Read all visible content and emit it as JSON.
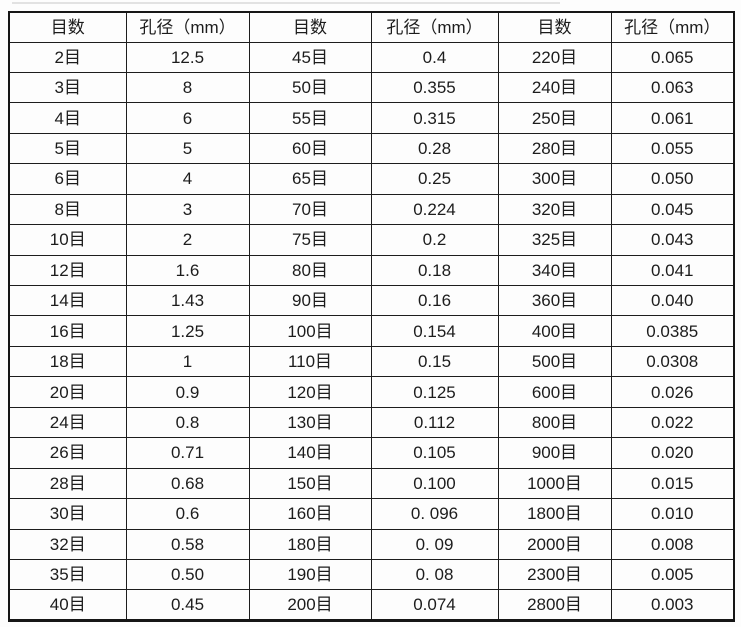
{
  "colors": {
    "background": "#fdfdfd",
    "border": "#1d1d1d",
    "text": "#1c1c1c"
  },
  "table": {
    "headers": [
      "目数",
      "孔径（mm）",
      "目数",
      "孔径（mm）",
      "目数",
      "孔径（mm）"
    ],
    "rows": [
      [
        "2目",
        "12.5",
        "45目",
        "0.4",
        "220目",
        "0.065"
      ],
      [
        "3目",
        "8",
        "50目",
        "0.355",
        "240目",
        "0.063"
      ],
      [
        "4目",
        "6",
        "55目",
        "0.315",
        "250目",
        "0.061"
      ],
      [
        "5目",
        "5",
        "60目",
        "0.28",
        "280目",
        "0.055"
      ],
      [
        "6目",
        "4",
        "65目",
        "0.25",
        "300目",
        "0.050"
      ],
      [
        "8目",
        "3",
        "70目",
        "0.224",
        "320目",
        "0.045"
      ],
      [
        "10目",
        "2",
        "75目",
        "0.2",
        "325目",
        "0.043"
      ],
      [
        "12目",
        "1.6",
        "80目",
        "0.18",
        "340目",
        "0.041"
      ],
      [
        "14目",
        "1.43",
        "90目",
        "0.16",
        "360目",
        "0.040"
      ],
      [
        "16目",
        "1.25",
        "100目",
        "0.154",
        "400目",
        "0.0385"
      ],
      [
        "18目",
        "1",
        "110目",
        "0.15",
        "500目",
        "0.0308"
      ],
      [
        "20目",
        "0.9",
        "120目",
        "0.125",
        "600目",
        "0.026"
      ],
      [
        "24目",
        "0.8",
        "130目",
        "0.112",
        "800目",
        "0.022"
      ],
      [
        "26目",
        "0.71",
        "140目",
        "0.105",
        "900目",
        "0.020"
      ],
      [
        "28目",
        "0.68",
        "150目",
        "0.100",
        "1000目",
        "0.015"
      ],
      [
        "30目",
        "0.6",
        "160目",
        "0. 096",
        "1800目",
        "0.010"
      ],
      [
        "32目",
        "0.58",
        "180目",
        "0. 09",
        "2000目",
        "0.008"
      ],
      [
        "35目",
        "0.50",
        "190目",
        "0. 08",
        "2300目",
        "0.005"
      ],
      [
        "40目",
        "0.45",
        "200目",
        "0.074",
        "2800目",
        "0.003"
      ]
    ]
  }
}
